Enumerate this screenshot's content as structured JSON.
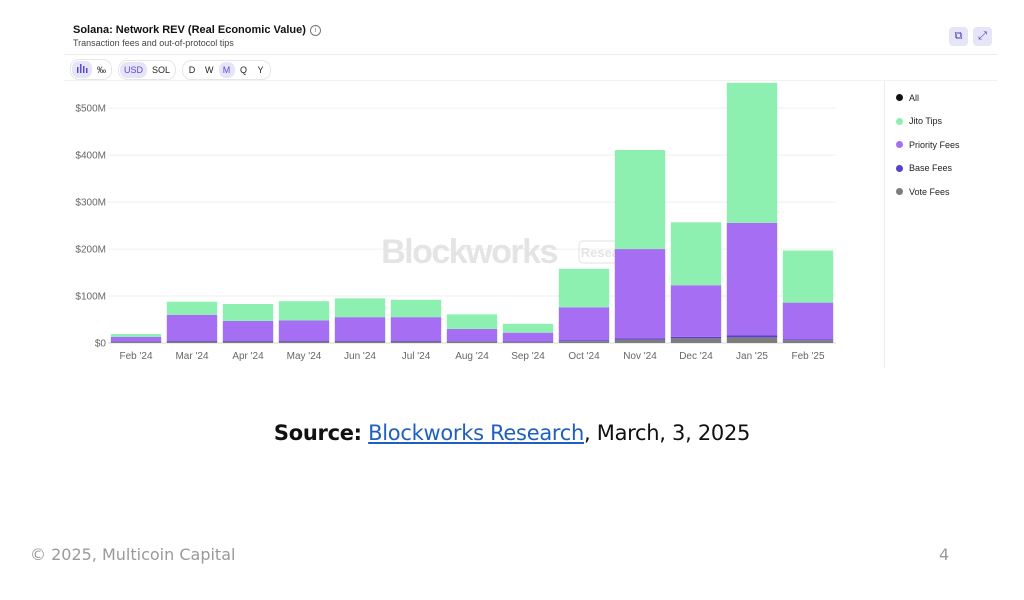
{
  "chart_header": {
    "title": "Solana: Network REV (Real Economic Value)",
    "subtitle": "Transaction fees and out-of-protocol tips",
    "info_icon": "info-icon",
    "actions": [
      "share-icon",
      "expand-icon"
    ]
  },
  "controls": {
    "view_toggles": [
      "bar-chart-icon",
      "percent-icon"
    ],
    "currency": [
      {
        "label": "USD",
        "active": true
      },
      {
        "label": "SOL",
        "active": false
      }
    ],
    "period": [
      {
        "label": "D",
        "active": false
      },
      {
        "label": "W",
        "active": false
      },
      {
        "label": "M",
        "active": true
      },
      {
        "label": "Q",
        "active": false
      },
      {
        "label": "Y",
        "active": false
      }
    ]
  },
  "watermark": {
    "brand": "Blockworks",
    "tag": "Research"
  },
  "legend": [
    {
      "label": "All",
      "color": "#111111"
    },
    {
      "label": "Jito Tips",
      "color": "#8ef0b0"
    },
    {
      "label": "Priority Fees",
      "color": "#a66ef2"
    },
    {
      "label": "Base Fees",
      "color": "#5a3fc8"
    },
    {
      "label": "Vote Fees",
      "color": "#7d7d7d"
    }
  ],
  "chart_data": {
    "type": "bar",
    "stacked": true,
    "categories": [
      "Feb '24",
      "Mar '24",
      "Apr '24",
      "May '24",
      "Jun '24",
      "Jul '24",
      "Aug '24",
      "Sep '24",
      "Oct '24",
      "Nov '24",
      "Dec '24",
      "Jan '25",
      "Feb '25"
    ],
    "series": [
      {
        "name": "Vote Fees",
        "color": "#7d7d7d",
        "values": [
          2,
          3,
          3,
          3,
          3,
          3,
          3,
          2,
          4,
          7,
          10,
          12,
          6
        ]
      },
      {
        "name": "Base Fees",
        "color": "#5a3fc8",
        "values": [
          1,
          2,
          2,
          2,
          2,
          2,
          1,
          1,
          2,
          3,
          3,
          4,
          2
        ]
      },
      {
        "name": "Priority Fees",
        "color": "#a66ef2",
        "values": [
          10,
          55,
          42,
          43,
          50,
          50,
          26,
          19,
          70,
          190,
          110,
          240,
          78
        ]
      },
      {
        "name": "Jito Tips",
        "color": "#8ef0b0",
        "values": [
          6,
          28,
          36,
          41,
          40,
          37,
          31,
          19,
          82,
          211,
          134,
          298,
          111
        ]
      }
    ],
    "ylim": [
      0,
      560
    ],
    "yticks": [
      0,
      100,
      200,
      300,
      400,
      500
    ],
    "ytick_labels": [
      "$0",
      "$100M",
      "$200M",
      "$300M",
      "$400M",
      "$500M"
    ],
    "grid": true,
    "legend_position": "right"
  },
  "source": {
    "prefix": "Source:",
    "link_text": "Blockworks Research",
    "suffix": ", March, 3, 2025"
  },
  "footer": {
    "copyright": "© 2025, Multicoin Capital",
    "page_number": "4"
  }
}
